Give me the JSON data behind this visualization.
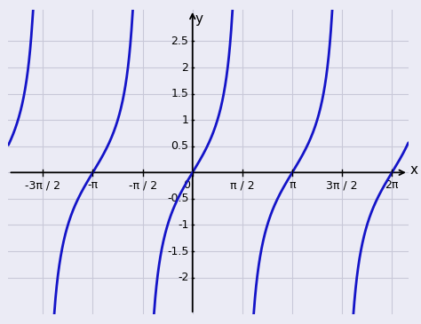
{
  "xlabel": "x",
  "ylabel": "y",
  "xlim_left": -5.8,
  "xlim_right": 6.8,
  "ylim_bottom": -2.7,
  "ylim_top": 3.1,
  "line_color": "#1414c8",
  "line_width": 2.0,
  "background_color": "#ebebf5",
  "grid_color": "#c8c8d8",
  "axis_color": "#000000",
  "clip_value": 2.65,
  "x_tick_positions": [
    -4.71238898,
    -3.14159265,
    -1.57079633,
    0,
    1.57079633,
    3.14159265,
    4.71238898,
    6.28318531
  ],
  "x_tick_labels": [
    "-3π / 2",
    "-π",
    "-π / 2",
    "0",
    "π / 2",
    "π",
    "3π / 2",
    "2π"
  ],
  "y_tick_positions": [
    -2,
    -1.5,
    -1,
    -0.5,
    0.5,
    1,
    1.5,
    2,
    2.5
  ],
  "y_tick_labels": [
    "-2",
    "-1.5",
    "-1",
    "-0.5",
    "0.5",
    "1",
    "1.5",
    "2",
    "2.5"
  ],
  "tick_fontsize": 9,
  "label_fontsize": 11
}
